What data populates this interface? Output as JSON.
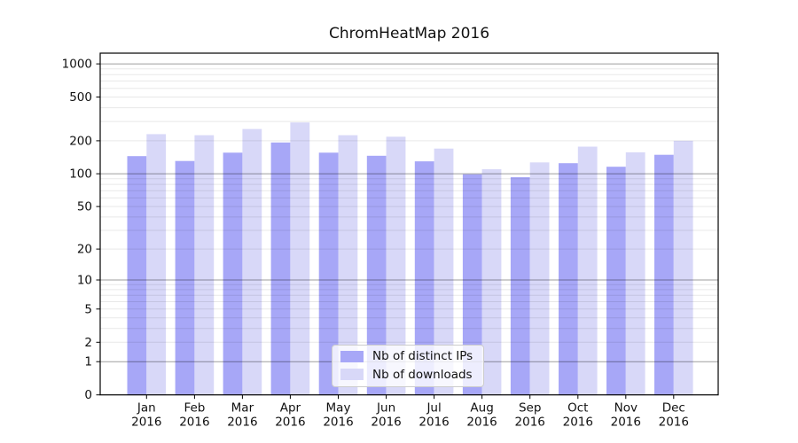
{
  "chart_data": {
    "type": "bar",
    "title": "ChromHeatMap 2016",
    "categories": [
      "Jan",
      "Feb",
      "Mar",
      "Apr",
      "May",
      "Jun",
      "Jul",
      "Aug",
      "Sep",
      "Oct",
      "Nov",
      "Dec"
    ],
    "x_tick_second_line": "2016",
    "series": [
      {
        "name": "Nb of distinct IPs",
        "color": "#a7a7f7",
        "values": [
          145,
          131,
          156,
          193,
          156,
          146,
          130,
          99,
          93,
          125,
          116,
          149
        ]
      },
      {
        "name": "Nb of downloads",
        "color": "#d8d8f8",
        "values": [
          230,
          225,
          256,
          294,
          225,
          218,
          170,
          110,
          127,
          177,
          157,
          200
        ]
      }
    ],
    "y_ticks": [
      0,
      1,
      2,
      5,
      10,
      20,
      50,
      100,
      200,
      500,
      1000
    ],
    "y_tick_labels": [
      "0",
      "1",
      "2",
      "5",
      "10",
      "20",
      "50",
      "100",
      "200",
      "500",
      "1000"
    ],
    "scale": "log1p",
    "ylim": [
      0,
      1251
    ],
    "grid": true,
    "legend_position": "lower center"
  },
  "colors": {
    "background": "#ffffff",
    "axis": "#000000",
    "text": "#111111",
    "grid_major": "rgba(0,0,0,0.38)",
    "grid_minor": "rgba(0,0,0,0.09)",
    "legend_border": "#cccccc"
  }
}
